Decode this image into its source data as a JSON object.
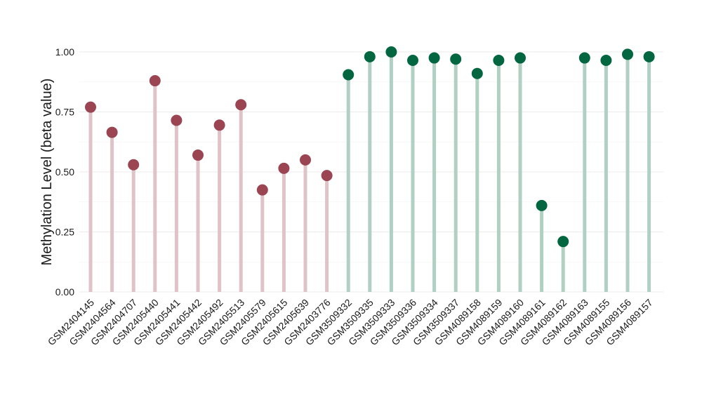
{
  "chart_data": {
    "type": "lollipop",
    "title": "",
    "xlabel": "",
    "ylabel": "Methylation Level (beta value)",
    "ylim": [
      0,
      1
    ],
    "yticks": [
      "0.00",
      "0.25",
      "0.50",
      "0.75",
      "1.00"
    ],
    "grid": true,
    "legend": "none",
    "groups": [
      {
        "stem_color": "#dfc3c8",
        "dot_color": "#9b4452"
      },
      {
        "stem_color": "#b0d0c3",
        "dot_color": "#026640"
      }
    ],
    "points": [
      {
        "label": "GSM2404145",
        "value": 0.77,
        "group": 0
      },
      {
        "label": "GSM2404564",
        "value": 0.665,
        "group": 0
      },
      {
        "label": "GSM2404707",
        "value": 0.53,
        "group": 0
      },
      {
        "label": "GSM2405440",
        "value": 0.88,
        "group": 0
      },
      {
        "label": "GSM2405441",
        "value": 0.715,
        "group": 0
      },
      {
        "label": "GSM2405442",
        "value": 0.57,
        "group": 0
      },
      {
        "label": "GSM2405492",
        "value": 0.695,
        "group": 0
      },
      {
        "label": "GSM2405513",
        "value": 0.78,
        "group": 0
      },
      {
        "label": "GSM2405579",
        "value": 0.425,
        "group": 0
      },
      {
        "label": "GSM2405615",
        "value": 0.515,
        "group": 0
      },
      {
        "label": "GSM2405639",
        "value": 0.55,
        "group": 0
      },
      {
        "label": "GSM2403776",
        "value": 0.485,
        "group": 0
      },
      {
        "label": "GSM3509332",
        "value": 0.905,
        "group": 1
      },
      {
        "label": "GSM3509335",
        "value": 0.98,
        "group": 1
      },
      {
        "label": "GSM3509333",
        "value": 1.0,
        "group": 1
      },
      {
        "label": "GSM3509336",
        "value": 0.965,
        "group": 1
      },
      {
        "label": "GSM3509334",
        "value": 0.975,
        "group": 1
      },
      {
        "label": "GSM3509337",
        "value": 0.97,
        "group": 1
      },
      {
        "label": "GSM4089158",
        "value": 0.91,
        "group": 1
      },
      {
        "label": "GSM4089159",
        "value": 0.965,
        "group": 1
      },
      {
        "label": "GSM4089160",
        "value": 0.975,
        "group": 1
      },
      {
        "label": "GSM4089161",
        "value": 0.36,
        "group": 1
      },
      {
        "label": "GSM4089162",
        "value": 0.21,
        "group": 1
      },
      {
        "label": "GSM4089163",
        "value": 0.975,
        "group": 1
      },
      {
        "label": "GSM4089155",
        "value": 0.965,
        "group": 1
      },
      {
        "label": "GSM4089156",
        "value": 0.99,
        "group": 1
      },
      {
        "label": "GSM4089157",
        "value": 0.98,
        "group": 1
      }
    ]
  }
}
